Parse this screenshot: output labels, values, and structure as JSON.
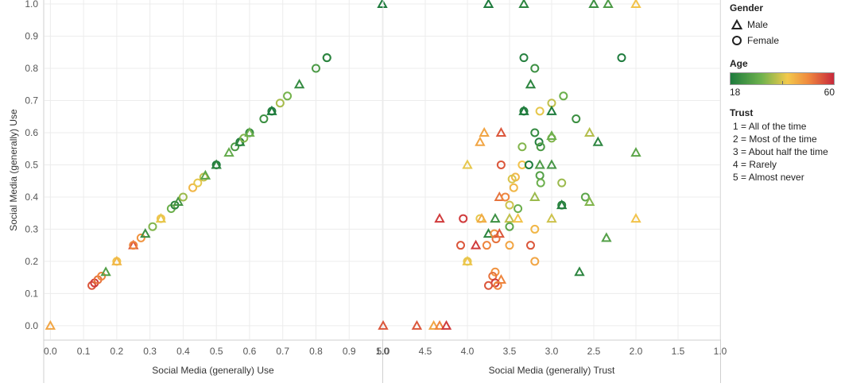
{
  "chart_data": [
    {
      "type": "scatter",
      "xlabel": "Social Media (generally) Use",
      "ylabel": "Social Media (generally) Use",
      "xlim": [
        -0.02,
        1.0
      ],
      "ylim": [
        -0.02,
        1.0
      ],
      "x_ticks": [
        "0.0",
        "0.1",
        "0.2",
        "0.3",
        "0.4",
        "0.5",
        "0.6",
        "0.7",
        "0.8",
        "0.9",
        "1.0"
      ],
      "y_ticks": [
        "0.0",
        "0.1",
        "0.2",
        "0.3",
        "0.4",
        "0.5",
        "0.6",
        "0.7",
        "0.8",
        "0.9",
        "1.0"
      ],
      "points": [
        {
          "x": 0.0,
          "y": 0.0,
          "shape": "triangle",
          "age": 45
        },
        {
          "x": 0.125,
          "y": 0.125,
          "shape": "circle",
          "age": 55
        },
        {
          "x": 0.133,
          "y": 0.133,
          "shape": "circle",
          "age": 58
        },
        {
          "x": 0.143,
          "y": 0.143,
          "shape": "circle",
          "age": 52
        },
        {
          "x": 0.154,
          "y": 0.154,
          "shape": "circle",
          "age": 50
        },
        {
          "x": 0.167,
          "y": 0.167,
          "shape": "triangle",
          "age": 25
        },
        {
          "x": 0.2,
          "y": 0.2,
          "shape": "circle",
          "age": 40
        },
        {
          "x": 0.2,
          "y": 0.2,
          "shape": "triangle",
          "age": 42
        },
        {
          "x": 0.25,
          "y": 0.25,
          "shape": "triangle",
          "age": 55
        },
        {
          "x": 0.25,
          "y": 0.25,
          "shape": "circle",
          "age": 50
        },
        {
          "x": 0.273,
          "y": 0.273,
          "shape": "circle",
          "age": 48
        },
        {
          "x": 0.286,
          "y": 0.286,
          "shape": "triangle",
          "age": 22
        },
        {
          "x": 0.308,
          "y": 0.308,
          "shape": "circle",
          "age": 30
        },
        {
          "x": 0.333,
          "y": 0.333,
          "shape": "circle",
          "age": 40
        },
        {
          "x": 0.333,
          "y": 0.333,
          "shape": "triangle",
          "age": 38
        },
        {
          "x": 0.364,
          "y": 0.364,
          "shape": "circle",
          "age": 28
        },
        {
          "x": 0.375,
          "y": 0.375,
          "shape": "circle",
          "age": 20
        },
        {
          "x": 0.385,
          "y": 0.385,
          "shape": "triangle",
          "age": 23
        },
        {
          "x": 0.4,
          "y": 0.4,
          "shape": "circle",
          "age": 32
        },
        {
          "x": 0.429,
          "y": 0.429,
          "shape": "circle",
          "age": 42
        },
        {
          "x": 0.444,
          "y": 0.444,
          "shape": "circle",
          "age": 38
        },
        {
          "x": 0.462,
          "y": 0.462,
          "shape": "circle",
          "age": 35
        },
        {
          "x": 0.467,
          "y": 0.467,
          "shape": "triangle",
          "age": 26
        },
        {
          "x": 0.5,
          "y": 0.5,
          "shape": "circle",
          "age": 18
        },
        {
          "x": 0.5,
          "y": 0.5,
          "shape": "triangle",
          "age": 20
        },
        {
          "x": 0.538,
          "y": 0.538,
          "shape": "triangle",
          "age": 27
        },
        {
          "x": 0.556,
          "y": 0.556,
          "shape": "circle",
          "age": 24
        },
        {
          "x": 0.571,
          "y": 0.571,
          "shape": "circle",
          "age": 19
        },
        {
          "x": 0.571,
          "y": 0.571,
          "shape": "triangle",
          "age": 20
        },
        {
          "x": 0.583,
          "y": 0.583,
          "shape": "circle",
          "age": 30
        },
        {
          "x": 0.6,
          "y": 0.6,
          "shape": "circle",
          "age": 21
        },
        {
          "x": 0.6,
          "y": 0.6,
          "shape": "triangle",
          "age": 28
        },
        {
          "x": 0.643,
          "y": 0.643,
          "shape": "circle",
          "age": 22
        },
        {
          "x": 0.667,
          "y": 0.667,
          "shape": "circle",
          "age": 19
        },
        {
          "x": 0.667,
          "y": 0.667,
          "shape": "triangle",
          "age": 18
        },
        {
          "x": 0.692,
          "y": 0.692,
          "shape": "circle",
          "age": 33
        },
        {
          "x": 0.714,
          "y": 0.714,
          "shape": "circle",
          "age": 29
        },
        {
          "x": 0.75,
          "y": 0.75,
          "shape": "triangle",
          "age": 21
        },
        {
          "x": 0.8,
          "y": 0.8,
          "shape": "circle",
          "age": 24
        },
        {
          "x": 0.833,
          "y": 0.833,
          "shape": "circle",
          "age": 19
        },
        {
          "x": 0.833,
          "y": 0.833,
          "shape": "circle",
          "age": 20
        },
        {
          "x": 1.0,
          "y": 1.0,
          "shape": "triangle",
          "age": 18
        }
      ]
    },
    {
      "type": "scatter",
      "xlabel": "Social Media (generally) Trust",
      "ylabel": "",
      "xlim": [
        5.0,
        1.0
      ],
      "ylim": [
        -0.02,
        1.0
      ],
      "x_ticks": [
        "5.0",
        "4.5",
        "4.0",
        "3.5",
        "3.0",
        "2.5",
        "2.0",
        "1.5",
        "1.0"
      ],
      "points": [
        {
          "x": 5.0,
          "y": 0.0,
          "shape": "triangle",
          "age": 55
        },
        {
          "x": 4.6,
          "y": 0.0,
          "shape": "triangle",
          "age": 55
        },
        {
          "x": 4.4,
          "y": 0.0,
          "shape": "triangle",
          "age": 45
        },
        {
          "x": 4.33,
          "y": 0.0,
          "shape": "triangle",
          "age": 50
        },
        {
          "x": 4.25,
          "y": 0.0,
          "shape": "triangle",
          "age": 58
        },
        {
          "x": 3.75,
          "y": 1.0,
          "shape": "triangle",
          "age": 18
        },
        {
          "x": 3.33,
          "y": 1.0,
          "shape": "triangle",
          "age": 20
        },
        {
          "x": 2.5,
          "y": 1.0,
          "shape": "triangle",
          "age": 22
        },
        {
          "x": 2.33,
          "y": 1.0,
          "shape": "triangle",
          "age": 24
        },
        {
          "x": 2.0,
          "y": 1.0,
          "shape": "triangle",
          "age": 40
        },
        {
          "x": 3.33,
          "y": 0.833,
          "shape": "circle",
          "age": 19
        },
        {
          "x": 3.2,
          "y": 0.8,
          "shape": "circle",
          "age": 22
        },
        {
          "x": 2.17,
          "y": 0.833,
          "shape": "circle",
          "age": 18
        },
        {
          "x": 3.25,
          "y": 0.75,
          "shape": "triangle",
          "age": 20
        },
        {
          "x": 3.0,
          "y": 0.692,
          "shape": "circle",
          "age": 35
        },
        {
          "x": 2.86,
          "y": 0.714,
          "shape": "circle",
          "age": 28
        },
        {
          "x": 3.33,
          "y": 0.667,
          "shape": "circle",
          "age": 19
        },
        {
          "x": 3.33,
          "y": 0.667,
          "shape": "triangle",
          "age": 18
        },
        {
          "x": 3.0,
          "y": 0.667,
          "shape": "triangle",
          "age": 18
        },
        {
          "x": 3.14,
          "y": 0.667,
          "shape": "circle",
          "age": 38
        },
        {
          "x": 2.71,
          "y": 0.643,
          "shape": "circle",
          "age": 22
        },
        {
          "x": 3.8,
          "y": 0.6,
          "shape": "triangle",
          "age": 45
        },
        {
          "x": 3.6,
          "y": 0.6,
          "shape": "triangle",
          "age": 55
        },
        {
          "x": 3.2,
          "y": 0.6,
          "shape": "circle",
          "age": 21
        },
        {
          "x": 3.0,
          "y": 0.583,
          "shape": "circle",
          "age": 30
        },
        {
          "x": 3.0,
          "y": 0.59,
          "shape": "triangle",
          "age": 28
        },
        {
          "x": 2.55,
          "y": 0.6,
          "shape": "triangle",
          "age": 34
        },
        {
          "x": 3.85,
          "y": 0.571,
          "shape": "triangle",
          "age": 45
        },
        {
          "x": 3.15,
          "y": 0.571,
          "shape": "circle",
          "age": 19
        },
        {
          "x": 3.13,
          "y": 0.556,
          "shape": "circle",
          "age": 24
        },
        {
          "x": 3.35,
          "y": 0.556,
          "shape": "circle",
          "age": 30
        },
        {
          "x": 2.45,
          "y": 0.571,
          "shape": "triangle",
          "age": 20
        },
        {
          "x": 4.0,
          "y": 0.5,
          "shape": "triangle",
          "age": 38
        },
        {
          "x": 3.6,
          "y": 0.5,
          "shape": "circle",
          "age": 55
        },
        {
          "x": 3.35,
          "y": 0.5,
          "shape": "circle",
          "age": 40
        },
        {
          "x": 3.27,
          "y": 0.5,
          "shape": "circle",
          "age": 18
        },
        {
          "x": 3.14,
          "y": 0.5,
          "shape": "triangle",
          "age": 24
        },
        {
          "x": 3.0,
          "y": 0.5,
          "shape": "triangle",
          "age": 23
        },
        {
          "x": 2.0,
          "y": 0.538,
          "shape": "triangle",
          "age": 26
        },
        {
          "x": 3.43,
          "y": 0.462,
          "shape": "circle",
          "age": 42
        },
        {
          "x": 3.47,
          "y": 0.456,
          "shape": "circle",
          "age": 37
        },
        {
          "x": 3.14,
          "y": 0.467,
          "shape": "circle",
          "age": 25
        },
        {
          "x": 3.13,
          "y": 0.444,
          "shape": "circle",
          "age": 28
        },
        {
          "x": 2.88,
          "y": 0.444,
          "shape": "circle",
          "age": 32
        },
        {
          "x": 3.45,
          "y": 0.429,
          "shape": "circle",
          "age": 42
        },
        {
          "x": 3.62,
          "y": 0.4,
          "shape": "triangle",
          "age": 52
        },
        {
          "x": 3.55,
          "y": 0.4,
          "shape": "circle",
          "age": 50
        },
        {
          "x": 3.2,
          "y": 0.4,
          "shape": "triangle",
          "age": 32
        },
        {
          "x": 2.6,
          "y": 0.4,
          "shape": "circle",
          "age": 26
        },
        {
          "x": 3.5,
          "y": 0.375,
          "shape": "circle",
          "age": 36
        },
        {
          "x": 3.4,
          "y": 0.364,
          "shape": "circle",
          "age": 28
        },
        {
          "x": 2.88,
          "y": 0.375,
          "shape": "circle",
          "age": 20
        },
        {
          "x": 2.88,
          "y": 0.375,
          "shape": "triangle",
          "age": 19
        },
        {
          "x": 2.55,
          "y": 0.385,
          "shape": "triangle",
          "age": 30
        },
        {
          "x": 4.33,
          "y": 0.333,
          "shape": "triangle",
          "age": 58
        },
        {
          "x": 4.05,
          "y": 0.333,
          "shape": "circle",
          "age": 58
        },
        {
          "x": 3.85,
          "y": 0.333,
          "shape": "circle",
          "age": 38
        },
        {
          "x": 3.83,
          "y": 0.333,
          "shape": "triangle",
          "age": 44
        },
        {
          "x": 3.67,
          "y": 0.333,
          "shape": "triangle",
          "age": 22
        },
        {
          "x": 3.5,
          "y": 0.333,
          "shape": "triangle",
          "age": 35
        },
        {
          "x": 3.4,
          "y": 0.333,
          "shape": "triangle",
          "age": 40
        },
        {
          "x": 3.2,
          "y": 0.3,
          "shape": "circle",
          "age": 42
        },
        {
          "x": 3.0,
          "y": 0.333,
          "shape": "triangle",
          "age": 36
        },
        {
          "x": 2.0,
          "y": 0.333,
          "shape": "triangle",
          "age": 40
        },
        {
          "x": 3.5,
          "y": 0.308,
          "shape": "circle",
          "age": 26
        },
        {
          "x": 3.75,
          "y": 0.286,
          "shape": "triangle",
          "age": 20
        },
        {
          "x": 3.68,
          "y": 0.286,
          "shape": "circle",
          "age": 48
        },
        {
          "x": 3.62,
          "y": 0.286,
          "shape": "triangle",
          "age": 55
        },
        {
          "x": 3.66,
          "y": 0.27,
          "shape": "circle",
          "age": 52
        },
        {
          "x": 2.35,
          "y": 0.273,
          "shape": "triangle",
          "age": 25
        },
        {
          "x": 4.08,
          "y": 0.25,
          "shape": "circle",
          "age": 55
        },
        {
          "x": 3.9,
          "y": 0.25,
          "shape": "triangle",
          "age": 58
        },
        {
          "x": 3.77,
          "y": 0.25,
          "shape": "circle",
          "age": 50
        },
        {
          "x": 3.5,
          "y": 0.25,
          "shape": "circle",
          "age": 45
        },
        {
          "x": 3.25,
          "y": 0.25,
          "shape": "circle",
          "age": 55
        },
        {
          "x": 4.0,
          "y": 0.2,
          "shape": "triangle",
          "age": 40
        },
        {
          "x": 4.0,
          "y": 0.2,
          "shape": "circle",
          "age": 38
        },
        {
          "x": 3.2,
          "y": 0.2,
          "shape": "circle",
          "age": 45
        },
        {
          "x": 2.67,
          "y": 0.167,
          "shape": "triangle",
          "age": 20
        },
        {
          "x": 3.67,
          "y": 0.167,
          "shape": "circle",
          "age": 48
        },
        {
          "x": 3.7,
          "y": 0.154,
          "shape": "circle",
          "age": 52
        },
        {
          "x": 3.6,
          "y": 0.143,
          "shape": "triangle",
          "age": 50
        },
        {
          "x": 3.67,
          "y": 0.133,
          "shape": "circle",
          "age": 58
        },
        {
          "x": 3.75,
          "y": 0.125,
          "shape": "circle",
          "age": 55
        },
        {
          "x": 3.64,
          "y": 0.125,
          "shape": "circle",
          "age": 50
        }
      ]
    }
  ],
  "legend": {
    "gender_title": "Gender",
    "male_label": "Male",
    "female_label": "Female",
    "age_title": "Age",
    "age_min": "18",
    "age_max": "60",
    "age_colors": [
      "#1e7b3d",
      "#6fb24d",
      "#f2c94c",
      "#f08a3e",
      "#c8283b"
    ],
    "trust_title": "Trust",
    "trust_items": [
      "1 = All of the time",
      "2 = Most of the time",
      "3 = About half the time",
      "4 = Rarely",
      "5 = Almost never"
    ]
  }
}
